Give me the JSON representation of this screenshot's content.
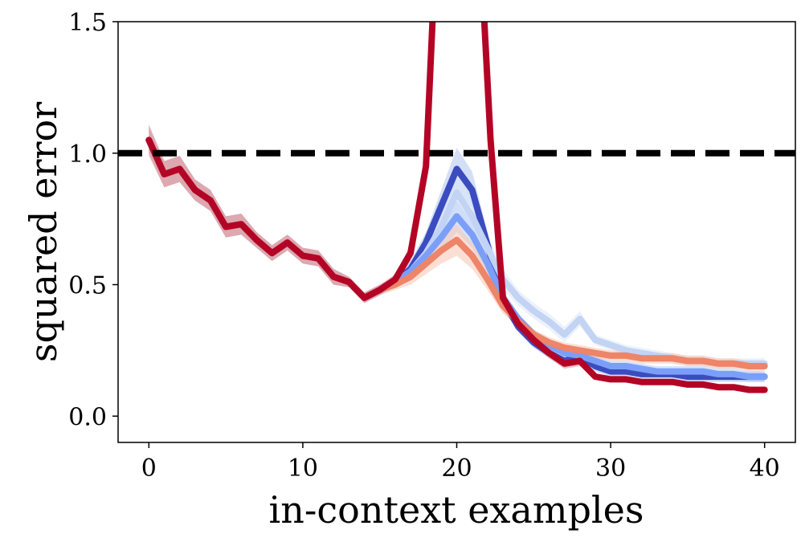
{
  "chart_data": {
    "type": "line",
    "xlabel": "in-context examples",
    "ylabel": "squared error",
    "xlim": [
      -2,
      42
    ],
    "ylim": [
      -0.1,
      1.5
    ],
    "xticks": [
      0,
      10,
      20,
      30,
      40
    ],
    "xtick_labels": [
      "0",
      "10",
      "20",
      "30",
      "40"
    ],
    "yticks": [
      0.0,
      0.5,
      1.0,
      1.5
    ],
    "ytick_labels": [
      "0.0",
      "0.5",
      "1.0",
      "1.5"
    ],
    "grid": false,
    "reference_line": {
      "y": 1.0,
      "style": "dashed",
      "color": "#000000"
    },
    "series": [
      {
        "color": "#3b4cc0",
        "band_color": "#aec4f0",
        "x": [
          0,
          1,
          2,
          3,
          4,
          5,
          6,
          7,
          8,
          9,
          10,
          11,
          12,
          13,
          14,
          15,
          16,
          17,
          18,
          19,
          20,
          21,
          22,
          23,
          24,
          25,
          26,
          27,
          28,
          29,
          30,
          31,
          32,
          33,
          34,
          35,
          36,
          37,
          38,
          39,
          40
        ],
        "y": [
          1.05,
          0.92,
          0.94,
          0.86,
          0.82,
          0.72,
          0.73,
          0.67,
          0.62,
          0.66,
          0.61,
          0.6,
          0.53,
          0.51,
          0.45,
          0.48,
          0.51,
          0.56,
          0.66,
          0.8,
          0.94,
          0.86,
          0.65,
          0.44,
          0.34,
          0.28,
          0.24,
          0.21,
          0.23,
          0.19,
          0.17,
          0.17,
          0.16,
          0.16,
          0.16,
          0.15,
          0.15,
          0.15,
          0.15,
          0.15,
          0.15
        ],
        "band": [
          0.05,
          0.05,
          0.05,
          0.04,
          0.04,
          0.04,
          0.04,
          0.03,
          0.03,
          0.03,
          0.03,
          0.03,
          0.03,
          0.02,
          0.02,
          0.02,
          0.02,
          0.03,
          0.04,
          0.06,
          0.08,
          0.07,
          0.05,
          0.03,
          0.02,
          0.02,
          0.02,
          0.02,
          0.02,
          0.02,
          0.02,
          0.02,
          0.02,
          0.02,
          0.02,
          0.02,
          0.02,
          0.02,
          0.02,
          0.02,
          0.02
        ]
      },
      {
        "color": "#c2d3f3",
        "band_color": "#dde7f8",
        "x": [
          0,
          1,
          2,
          3,
          4,
          5,
          6,
          7,
          8,
          9,
          10,
          11,
          12,
          13,
          14,
          15,
          16,
          17,
          18,
          19,
          20,
          21,
          22,
          23,
          24,
          25,
          26,
          27,
          28,
          29,
          30,
          31,
          32,
          33,
          34,
          35,
          36,
          37,
          38,
          39,
          40
        ],
        "y": [
          1.05,
          0.92,
          0.94,
          0.86,
          0.82,
          0.72,
          0.73,
          0.67,
          0.62,
          0.66,
          0.61,
          0.6,
          0.53,
          0.51,
          0.45,
          0.48,
          0.51,
          0.55,
          0.62,
          0.72,
          0.85,
          0.76,
          0.64,
          0.52,
          0.45,
          0.4,
          0.36,
          0.31,
          0.37,
          0.29,
          0.27,
          0.25,
          0.24,
          0.23,
          0.22,
          0.21,
          0.21,
          0.2,
          0.2,
          0.2,
          0.2
        ],
        "band": [
          0.05,
          0.05,
          0.05,
          0.04,
          0.04,
          0.04,
          0.04,
          0.03,
          0.03,
          0.03,
          0.03,
          0.03,
          0.03,
          0.02,
          0.02,
          0.02,
          0.02,
          0.03,
          0.04,
          0.05,
          0.07,
          0.06,
          0.05,
          0.04,
          0.03,
          0.03,
          0.03,
          0.03,
          0.03,
          0.02,
          0.02,
          0.02,
          0.02,
          0.02,
          0.02,
          0.02,
          0.02,
          0.02,
          0.02,
          0.02,
          0.02
        ]
      },
      {
        "color": "#7b9ff9",
        "band_color": "#b9cdf9",
        "x": [
          0,
          1,
          2,
          3,
          4,
          5,
          6,
          7,
          8,
          9,
          10,
          11,
          12,
          13,
          14,
          15,
          16,
          17,
          18,
          19,
          20,
          21,
          22,
          23,
          24,
          25,
          26,
          27,
          28,
          29,
          30,
          31,
          32,
          33,
          34,
          35,
          36,
          37,
          38,
          39,
          40
        ],
        "y": [
          1.05,
          0.92,
          0.94,
          0.86,
          0.82,
          0.72,
          0.73,
          0.67,
          0.62,
          0.66,
          0.61,
          0.6,
          0.53,
          0.51,
          0.45,
          0.48,
          0.51,
          0.55,
          0.61,
          0.68,
          0.76,
          0.69,
          0.58,
          0.45,
          0.37,
          0.31,
          0.27,
          0.24,
          0.23,
          0.21,
          0.19,
          0.19,
          0.18,
          0.17,
          0.17,
          0.17,
          0.17,
          0.16,
          0.16,
          0.15,
          0.15
        ],
        "band": [
          0.05,
          0.05,
          0.05,
          0.04,
          0.04,
          0.04,
          0.04,
          0.03,
          0.03,
          0.03,
          0.03,
          0.03,
          0.03,
          0.02,
          0.02,
          0.02,
          0.02,
          0.03,
          0.04,
          0.05,
          0.06,
          0.05,
          0.04,
          0.03,
          0.02,
          0.02,
          0.02,
          0.02,
          0.02,
          0.02,
          0.02,
          0.02,
          0.02,
          0.02,
          0.02,
          0.02,
          0.02,
          0.02,
          0.02,
          0.02,
          0.02
        ]
      },
      {
        "color": "#ee8468",
        "band_color": "#f7c4b0",
        "x": [
          0,
          1,
          2,
          3,
          4,
          5,
          6,
          7,
          8,
          9,
          10,
          11,
          12,
          13,
          14,
          15,
          16,
          17,
          18,
          19,
          20,
          21,
          22,
          23,
          24,
          25,
          26,
          27,
          28,
          29,
          30,
          31,
          32,
          33,
          34,
          35,
          36,
          37,
          38,
          39,
          40
        ],
        "y": [
          1.05,
          0.92,
          0.94,
          0.86,
          0.82,
          0.72,
          0.73,
          0.67,
          0.62,
          0.66,
          0.61,
          0.6,
          0.53,
          0.51,
          0.45,
          0.48,
          0.5,
          0.53,
          0.58,
          0.63,
          0.67,
          0.61,
          0.52,
          0.42,
          0.36,
          0.31,
          0.28,
          0.26,
          0.25,
          0.24,
          0.23,
          0.23,
          0.22,
          0.22,
          0.22,
          0.21,
          0.21,
          0.2,
          0.2,
          0.19,
          0.19
        ],
        "band": [
          0.05,
          0.05,
          0.05,
          0.04,
          0.04,
          0.04,
          0.04,
          0.03,
          0.03,
          0.03,
          0.03,
          0.03,
          0.03,
          0.02,
          0.02,
          0.02,
          0.02,
          0.03,
          0.04,
          0.05,
          0.06,
          0.05,
          0.04,
          0.03,
          0.02,
          0.02,
          0.02,
          0.02,
          0.02,
          0.02,
          0.02,
          0.02,
          0.02,
          0.02,
          0.02,
          0.02,
          0.02,
          0.02,
          0.02,
          0.02,
          0.02
        ]
      },
      {
        "color": "#b40426",
        "band_color": "#d88a94",
        "x": [
          0,
          1,
          2,
          3,
          4,
          5,
          6,
          7,
          8,
          9,
          10,
          11,
          12,
          13,
          14,
          15,
          16,
          17,
          18,
          18.5,
          21.7,
          22.2,
          23,
          24,
          25,
          26,
          27,
          28,
          29,
          30,
          31,
          32,
          33,
          34,
          35,
          36,
          37,
          38,
          39,
          40
        ],
        "y": [
          1.05,
          0.92,
          0.94,
          0.86,
          0.82,
          0.72,
          0.73,
          0.67,
          0.62,
          0.66,
          0.61,
          0.6,
          0.53,
          0.51,
          0.45,
          0.48,
          0.52,
          0.62,
          0.95,
          1.6,
          1.6,
          1.05,
          0.45,
          0.35,
          0.29,
          0.24,
          0.2,
          0.21,
          0.15,
          0.14,
          0.14,
          0.13,
          0.13,
          0.13,
          0.12,
          0.12,
          0.11,
          0.11,
          0.1,
          0.1
        ],
        "band": [
          0.06,
          0.05,
          0.05,
          0.04,
          0.04,
          0.04,
          0.04,
          0.03,
          0.03,
          0.03,
          0.03,
          0.03,
          0.03,
          0.02,
          0.02,
          0.02,
          0.02,
          0.03,
          0.05,
          0,
          0,
          0.05,
          0.03,
          0.02,
          0.02,
          0.02,
          0.02,
          0.02,
          0.01,
          0.01,
          0.01,
          0.01,
          0.01,
          0.01,
          0.01,
          0.01,
          0.01,
          0.01,
          0.01,
          0.01
        ]
      }
    ]
  }
}
